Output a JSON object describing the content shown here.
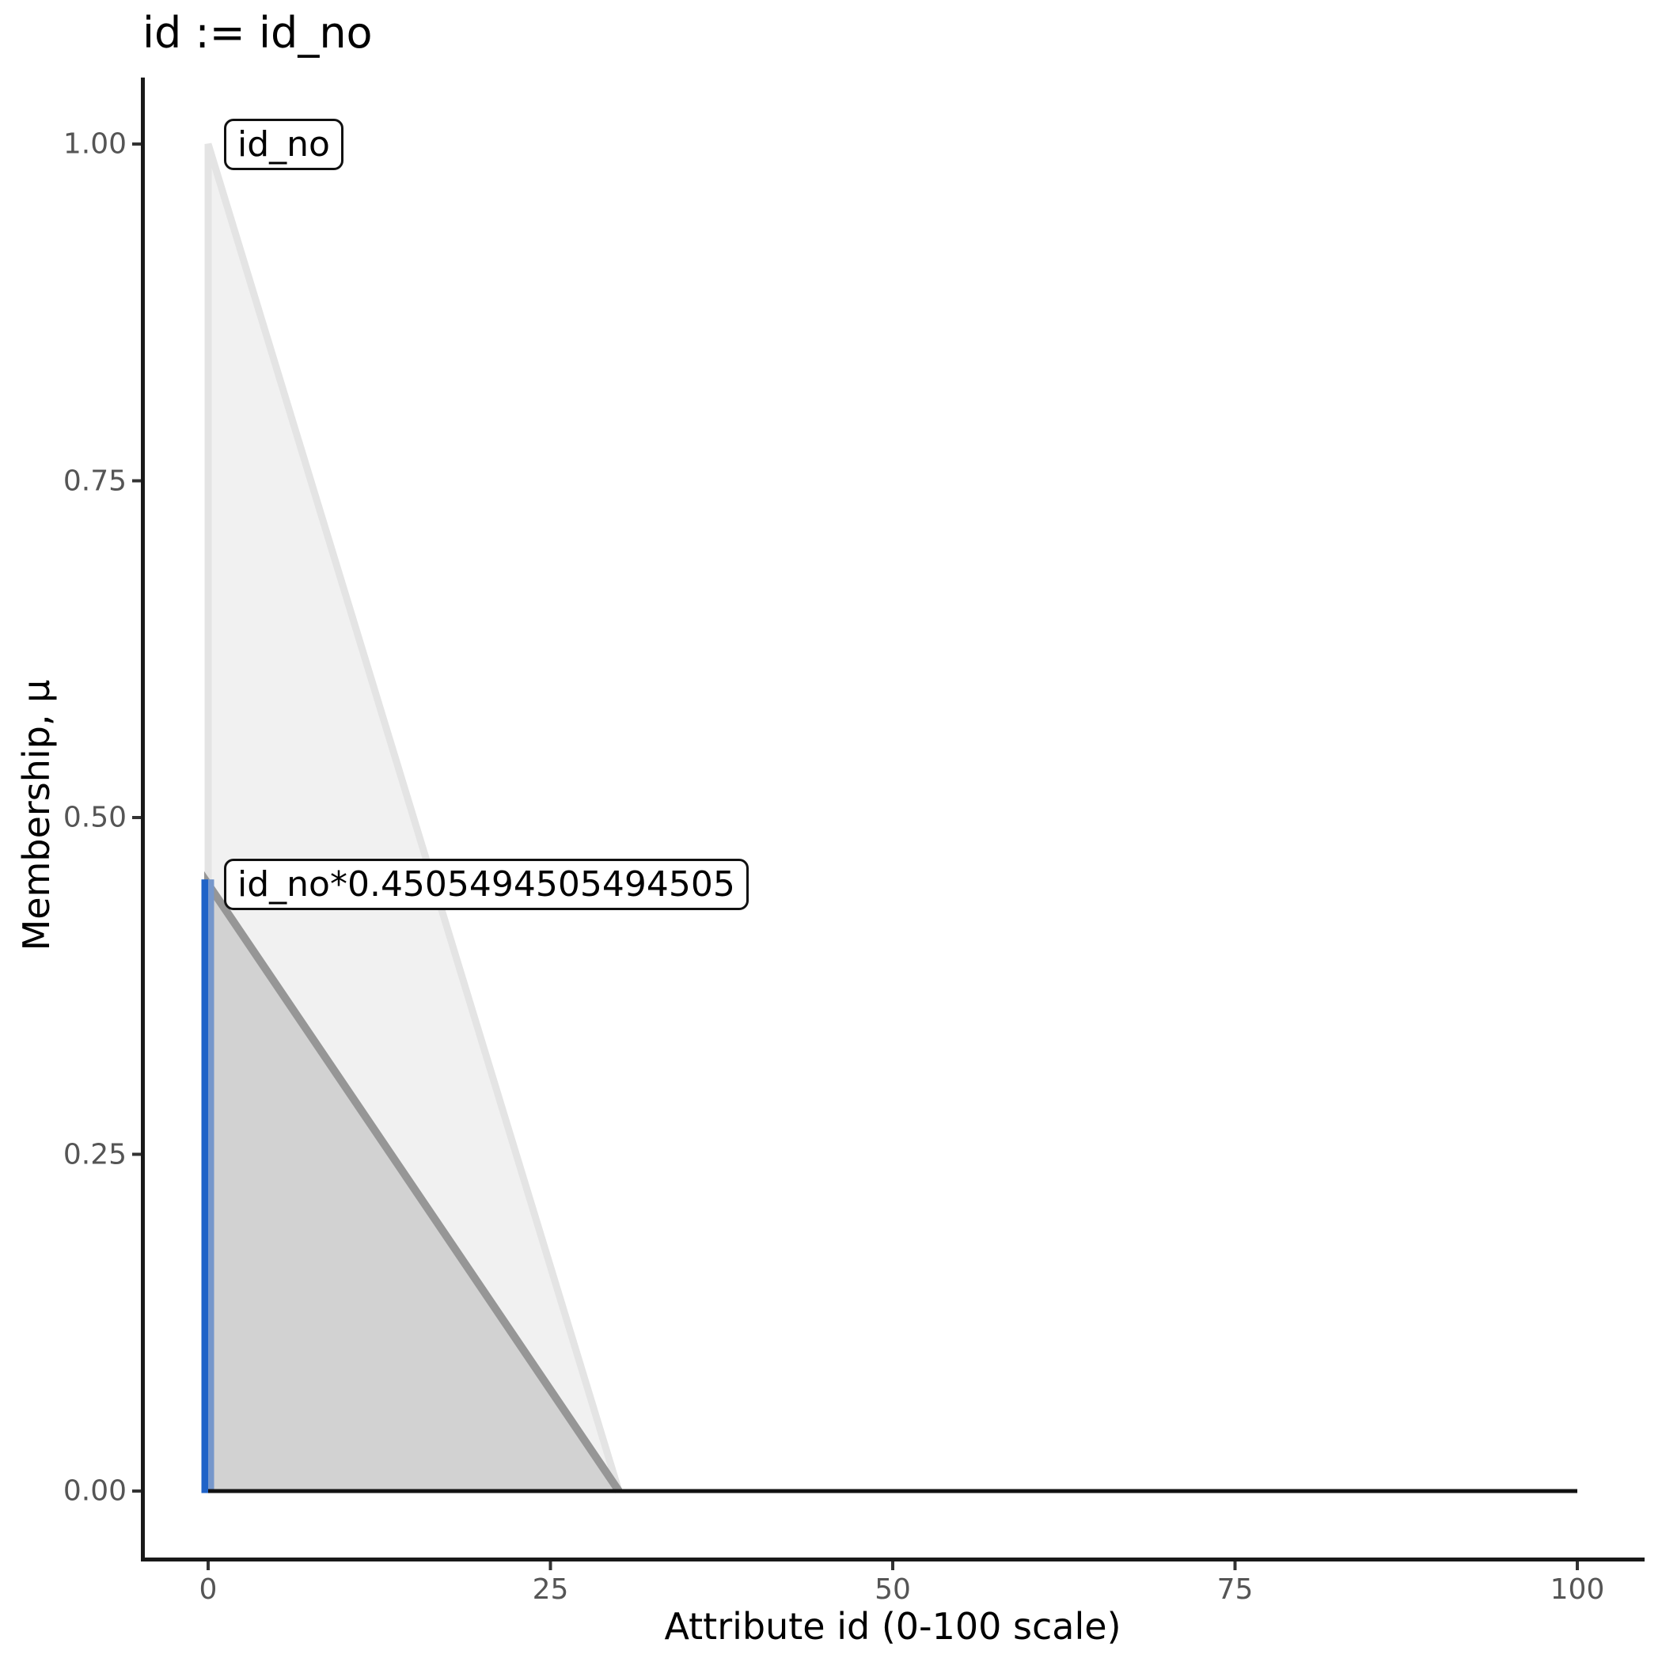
{
  "chart_data": {
    "type": "line",
    "title": "id := id_no",
    "xlabel": "Attribute id (0-100 scale)",
    "ylabel": "Membership, μ",
    "xlim": [
      0,
      100
    ],
    "ylim": [
      0,
      1
    ],
    "grid": false,
    "legend_position": "none",
    "x_ticks": [
      {
        "label": "0",
        "value": 0
      },
      {
        "label": "25",
        "value": 25
      },
      {
        "label": "50",
        "value": 50
      },
      {
        "label": "75",
        "value": 75
      },
      {
        "label": "100",
        "value": 100
      }
    ],
    "y_ticks": [
      {
        "label": "1.00",
        "value": 1.0
      },
      {
        "label": "0.75",
        "value": 0.75
      },
      {
        "label": "0.50",
        "value": 0.5
      },
      {
        "label": "0.25",
        "value": 0.25
      },
      {
        "label": "0.00",
        "value": 0.0
      }
    ],
    "series": [
      {
        "name": "id_no",
        "label": "id_no",
        "kind": "area",
        "fill": "#F1F1F1",
        "stroke": "#E4E4E4",
        "stroke_width": 9,
        "points": [
          [
            0,
            1.0
          ],
          [
            30,
            0.0
          ],
          [
            100,
            0.0
          ]
        ]
      },
      {
        "name": "id_no-scaled",
        "label": "id_no*0.4505494505494505",
        "kind": "area",
        "fill": "#D2D2D2",
        "stroke": "#969696",
        "stroke_width": 10,
        "points": [
          [
            0,
            0.4505494505494505
          ],
          [
            30,
            0.0
          ],
          [
            100,
            0.0
          ]
        ]
      }
    ],
    "baseline": {
      "y": 0,
      "x_from": 0,
      "x_to": 100,
      "color": "#121212",
      "width": 5
    },
    "cut_line": {
      "x": 0,
      "mu": 0.4505494505494505,
      "color": "#1F63C8",
      "overlap_color": "#7697CB"
    },
    "annotations": [
      {
        "label": "id_no",
        "x": 0,
        "mu": 1.0
      },
      {
        "label": "id_no*0.4505494505494505",
        "x": 0,
        "mu": 0.4505494505494505
      }
    ],
    "axis_style": {
      "spine_color": "#191919",
      "tick_color": "#333333",
      "tick_label_color": "#555555"
    }
  }
}
